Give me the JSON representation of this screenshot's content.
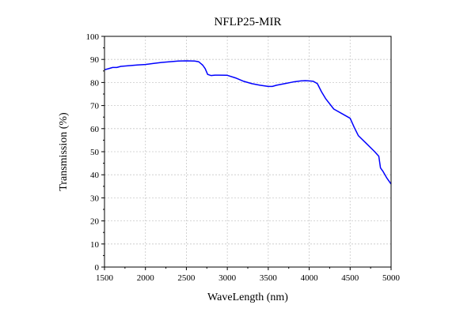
{
  "chart_data": {
    "type": "line",
    "title": "NFLP25-MIR",
    "xlabel": "WaveLength (nm)",
    "ylabel": "Transmission (%)",
    "xlim": [
      1500,
      5000
    ],
    "ylim": [
      0,
      100
    ],
    "xticks": [
      1500,
      2000,
      2500,
      3000,
      3500,
      4000,
      4500,
      5000
    ],
    "yticks": [
      0,
      10,
      20,
      30,
      40,
      50,
      60,
      70,
      80,
      90,
      100
    ],
    "grid": true,
    "line_color": "#0000ff",
    "series": [
      {
        "x": [
          1500,
          1550,
          1600,
          1650,
          1700,
          1800,
          1900,
          2000,
          2100,
          2200,
          2300,
          2400,
          2500,
          2600,
          2650,
          2700,
          2730,
          2760,
          2800,
          2850,
          2900,
          3000,
          3100,
          3200,
          3300,
          3400,
          3500,
          3550,
          3600,
          3700,
          3800,
          3900,
          3950,
          4000,
          4050,
          4100,
          4150,
          4200,
          4300,
          4400,
          4500,
          4550,
          4600,
          4700,
          4800,
          4850,
          4870,
          4900,
          4950,
          5000
        ],
        "y": [
          85.5,
          86,
          86.5,
          86.5,
          87,
          87.3,
          87.6,
          87.8,
          88.3,
          88.7,
          89,
          89.3,
          89.4,
          89.3,
          89,
          87.5,
          86,
          83.5,
          83,
          83.2,
          83.2,
          83.1,
          82,
          80.5,
          79.5,
          78.8,
          78.3,
          78.3,
          78.8,
          79.5,
          80.2,
          80.7,
          80.8,
          80.7,
          80.5,
          79.5,
          76,
          73,
          68.5,
          66.5,
          64.5,
          60.5,
          57,
          53.5,
          50,
          48,
          43,
          41.5,
          38.5,
          36
        ]
      }
    ]
  }
}
